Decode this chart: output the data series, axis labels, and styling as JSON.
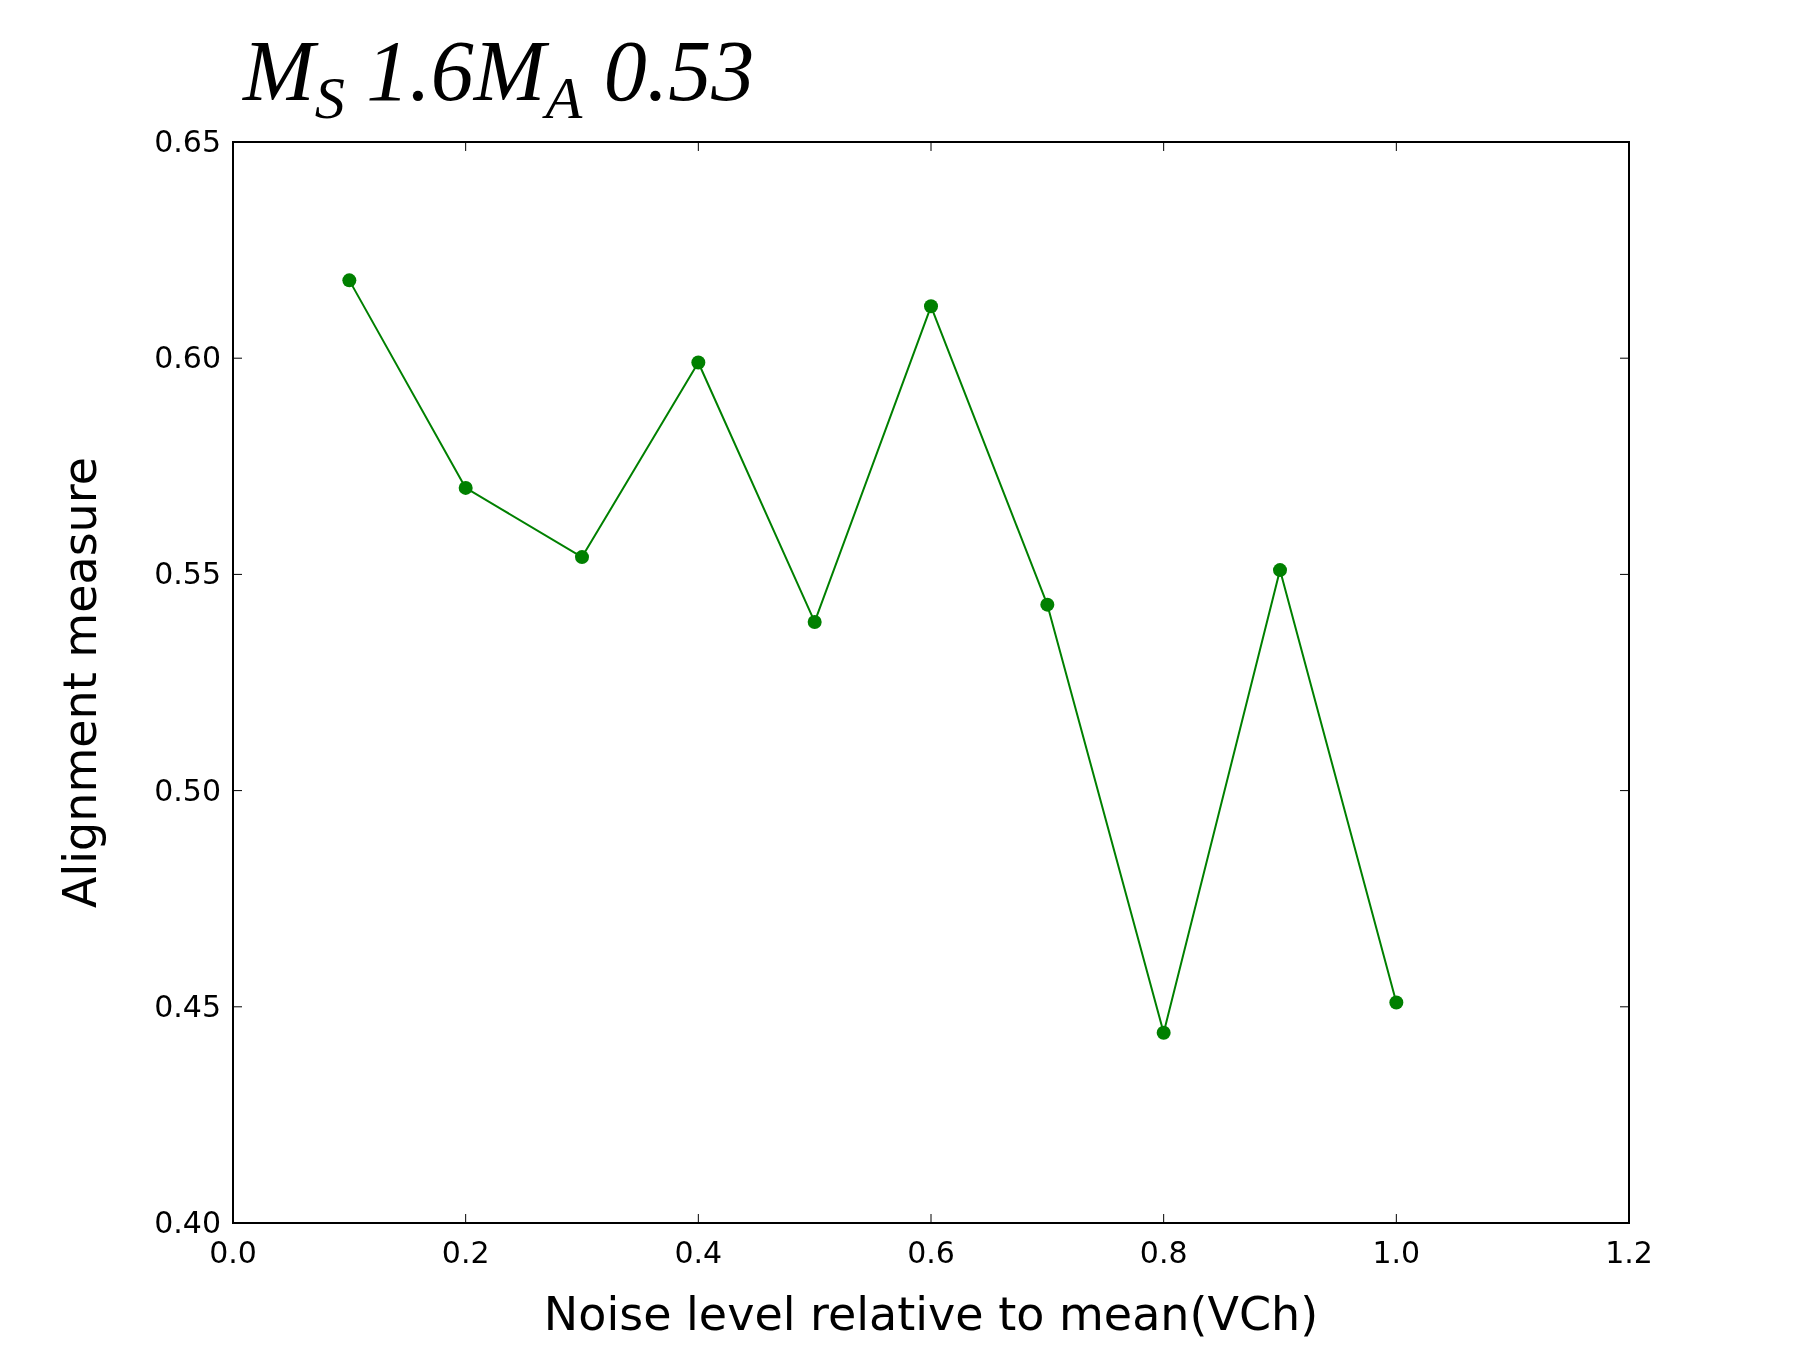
{
  "chart_data": {
    "type": "line",
    "title": "M$_{S}$1.6M$_{A}$0.53",
    "xlabel": "Noise level relative to mean(VCh)",
    "ylabel": "Alignment measure",
    "x": [
      0.1,
      0.2,
      0.3,
      0.4,
      0.5,
      0.6,
      0.7,
      0.8,
      0.9,
      1.0
    ],
    "series": [
      {
        "color": "#008000",
        "values": [
          0.618,
          0.57,
          0.554,
          0.599,
          0.539,
          0.612,
          0.543,
          0.444,
          0.551,
          0.451
        ]
      }
    ],
    "xlim": [
      0.0,
      1.2
    ],
    "xticks": [
      {
        "value": 0,
        "label": "0.0"
      },
      0.2,
      0.4,
      0.6,
      0.8,
      {
        "value": 1,
        "label": "1.0"
      },
      1.2
    ],
    "ylim": [
      0.4,
      0.65
    ],
    "yticks": [
      {
        "value": 0.4,
        "label": "0.40"
      },
      {
        "value": 0.45,
        "label": "0.45"
      },
      {
        "value": 0.5,
        "label": "0.50"
      },
      {
        "value": 0.55,
        "label": "0.55"
      },
      {
        "value": 0.6,
        "label": "0.60"
      },
      {
        "value": 0.65,
        "label": "0.65"
      }
    ],
    "marker": "circle",
    "line_style": "solid",
    "grid": false
  }
}
